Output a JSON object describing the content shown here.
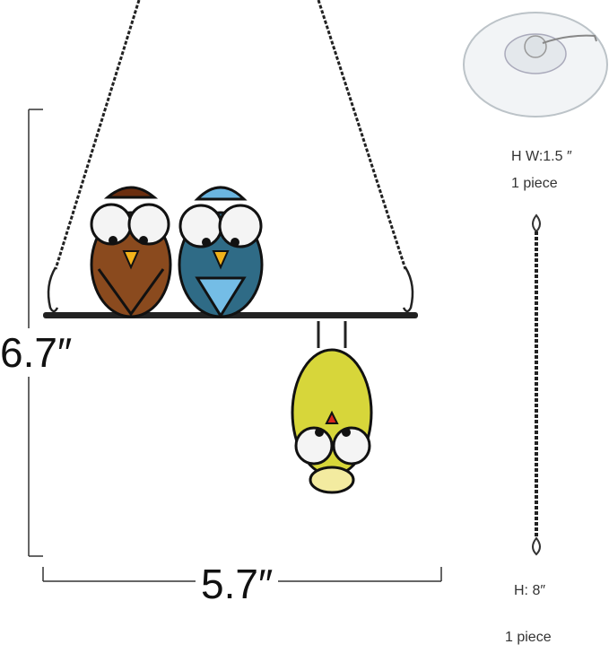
{
  "product": {
    "height_label": "6.7″",
    "width_label": "5.7″",
    "suction_cup": {
      "size_label": "H W:1.5 ″",
      "quantity_label": "1 piece"
    },
    "chain": {
      "size_label": "H: 8″",
      "quantity_label": "1 piece"
    }
  },
  "colors": {
    "brown_bird": "#8a4a1e",
    "blue_bird": "#2f6b86",
    "yellow_bird": "#d7d63a",
    "lines": "#222222"
  }
}
